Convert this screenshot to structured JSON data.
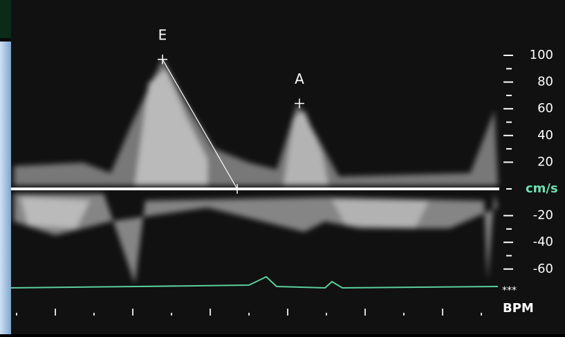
{
  "scale": {
    "ticks": [
      100,
      80,
      60,
      40,
      20,
      -20,
      -40,
      -60
    ],
    "unit": "cm/s"
  },
  "markers": [
    {
      "label": "E",
      "value": 97
    },
    {
      "label": "A",
      "value": 64
    }
  ],
  "footer": {
    "marker": "***",
    "rate": "BPM"
  }
}
